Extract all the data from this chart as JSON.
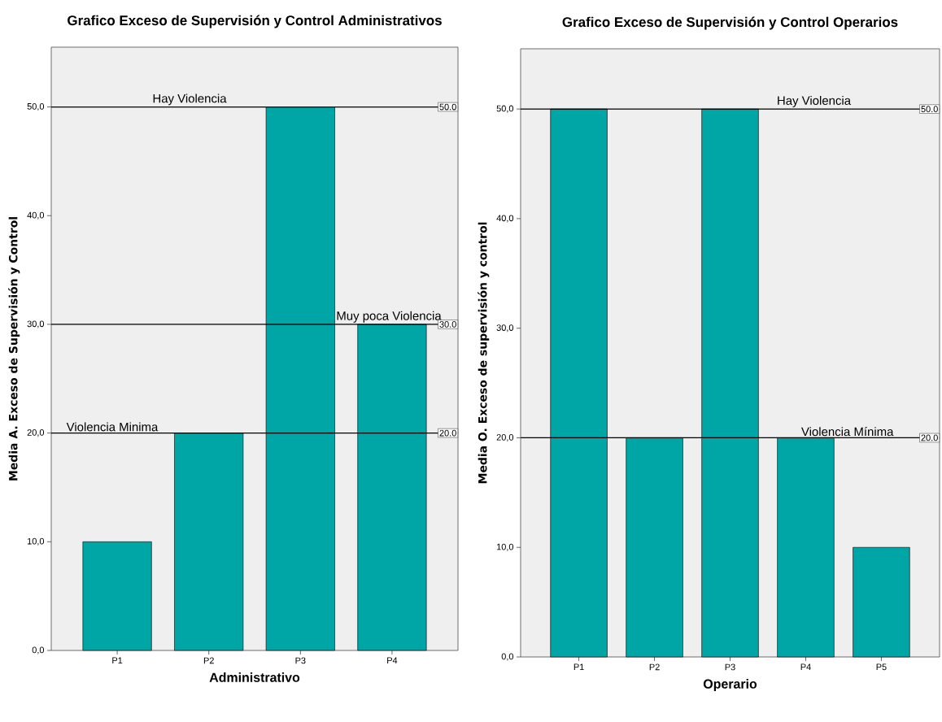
{
  "chart_data": [
    {
      "type": "bar",
      "title": "Grafico Exceso de Supervisión y Control Administrativos",
      "xlabel": "Administrativo",
      "ylabel": "Media A. Exceso de Supervisión y Control",
      "categories": [
        "P1",
        "P2",
        "P3",
        "P4"
      ],
      "values": [
        10,
        20,
        50,
        30
      ],
      "color": "#00a5a5",
      "ylim": [
        0,
        55.5
      ],
      "yticks": [
        {
          "value": 0,
          "label": "0,0"
        },
        {
          "value": 10,
          "label": "10,0"
        },
        {
          "value": 20,
          "label": "20,0"
        },
        {
          "value": 30,
          "label": "30,0"
        },
        {
          "value": 40,
          "label": "40,0"
        },
        {
          "value": 50,
          "label": "50,0"
        }
      ],
      "ref_lines": [
        {
          "axis": "y",
          "value": 50,
          "label": "Hay Violencia"
        },
        {
          "axis": "y",
          "value": 30,
          "label": "Muy poca Violencia"
        },
        {
          "axis": "y",
          "value": 20,
          "label": "Violencia Minima"
        }
      ],
      "annotations": [
        {
          "text": "50.0",
          "y": 50
        },
        {
          "text": "30.0",
          "y": 30
        },
        {
          "text": "20.0",
          "y": 20
        }
      ]
    },
    {
      "type": "bar",
      "title": "Grafico Exceso de Supervisión y Control Operarios",
      "xlabel": "Operario",
      "ylabel": "Media O. Exceso de supervisión y control",
      "categories": [
        "P1",
        "P2",
        "P3",
        "P4",
        "P5"
      ],
      "values": [
        50,
        20,
        50,
        20,
        10
      ],
      "color": "#00a5a5",
      "ylim": [
        0,
        55.5
      ],
      "yticks": [
        {
          "value": 0,
          "label": "0,0"
        },
        {
          "value": 10,
          "label": "10,0"
        },
        {
          "value": 20,
          "label": "20,0"
        },
        {
          "value": 30,
          "label": "30,0"
        },
        {
          "value": 40,
          "label": "40,0"
        },
        {
          "value": 50,
          "label": "50,0"
        }
      ],
      "ref_lines": [
        {
          "axis": "y",
          "value": 50,
          "label": "Hay Violencia"
        },
        {
          "axis": "y",
          "value": 20,
          "label": "Violencia Mínima"
        }
      ],
      "annotations": [
        {
          "text": "50.0",
          "y": 50
        },
        {
          "text": "20.0",
          "y": 20
        }
      ]
    }
  ]
}
